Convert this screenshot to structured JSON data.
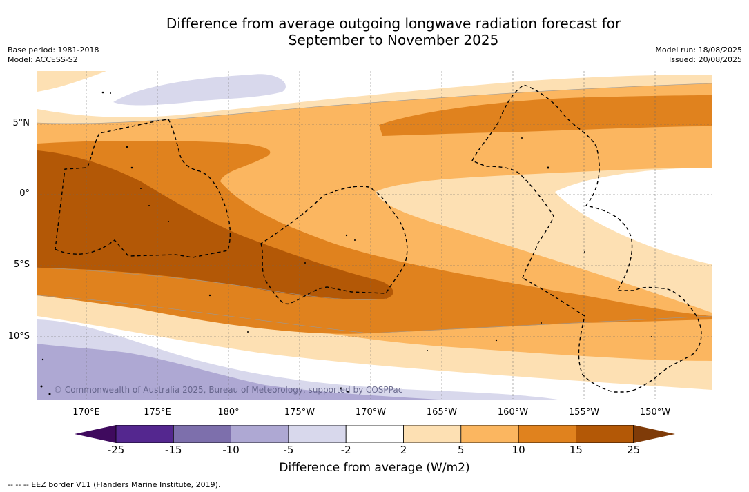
{
  "title": {
    "line1": "Difference from average outgoing longwave radiation forecast for",
    "line2": "September to November 2025"
  },
  "meta": {
    "base_period": "Base period: 1981-2018",
    "model": "Model: ACCESS-S2",
    "model_run": "Model run: 18/08/2025",
    "issued": "Issued: 20/08/2025"
  },
  "axes": {
    "lat_labels": [
      "5°N",
      "0°",
      "5°S",
      "10°S"
    ],
    "lon_labels": [
      "170°E",
      "175°E",
      "180°",
      "175°W",
      "170°W",
      "165°W",
      "160°W",
      "155°W",
      "150°W"
    ]
  },
  "copyright": "© Commonwealth of Australia 2025, Bureau of Meteorology, supported by COSPPac",
  "colorbar": {
    "ticks": [
      "-25",
      "-15",
      "-10",
      "-5",
      "-2",
      "2",
      "5",
      "10",
      "15",
      "25"
    ],
    "colors": [
      "#3f0a5e",
      "#54278f",
      "#7d6fac",
      "#aea8d3",
      "#d8d8ec",
      "#ffffff",
      "#fde0b3",
      "#fbb660",
      "#e0821e",
      "#b35806",
      "#7f3b08"
    ],
    "label": "Difference from average (W/m2)"
  },
  "footnote": "--  --  -- EEZ border V11 (Flanders Marine Institute, 2019)."
}
